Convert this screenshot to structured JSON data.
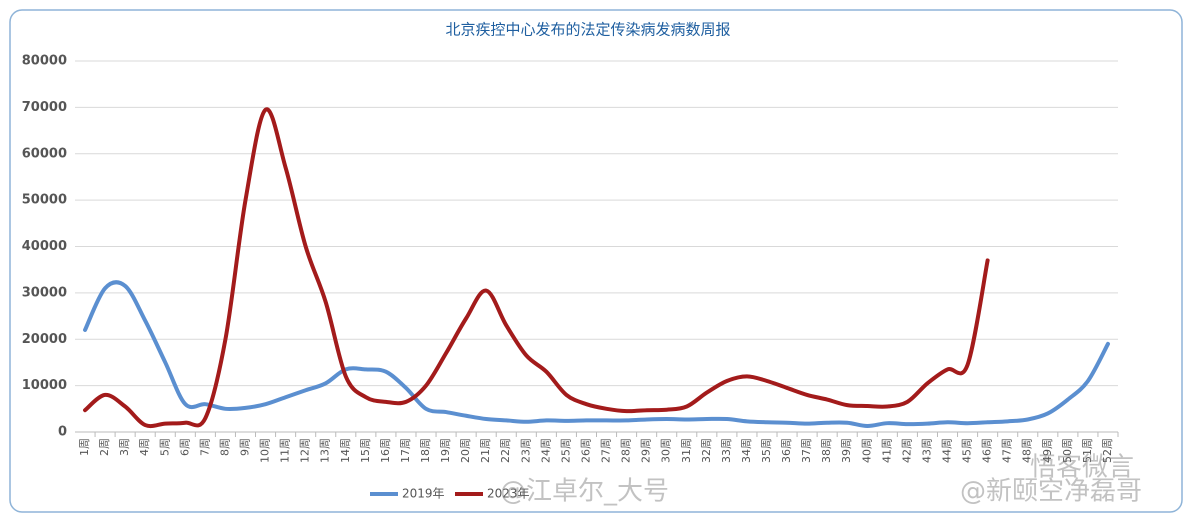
{
  "chart_data": {
    "type": "line",
    "title": "北京疾控中心发布的法定传染病发病数周报",
    "categories": [
      "1周",
      "2周",
      "3周",
      "4周",
      "5周",
      "6周",
      "7周",
      "8周",
      "9周",
      "10周",
      "11周",
      "12周",
      "13周",
      "14周",
      "15周",
      "16周",
      "17周",
      "18周",
      "19周",
      "20周",
      "21周",
      "22周",
      "23周",
      "24周",
      "25周",
      "26周",
      "27周",
      "28周",
      "29周",
      "30周",
      "31周",
      "32周",
      "33周",
      "34周",
      "35周",
      "36周",
      "37周",
      "38周",
      "39周",
      "40周",
      "41周",
      "42周",
      "43周",
      "44周",
      "45周",
      "46周",
      "47周",
      "48周",
      "49周",
      "50周",
      "51周",
      "52周"
    ],
    "series": [
      {
        "name": "2019年",
        "color": "#5b8fd0",
        "values": [
          22000,
          31000,
          31500,
          24000,
          15000,
          6000,
          6000,
          5000,
          5200,
          6000,
          7500,
          9000,
          10500,
          13500,
          13500,
          13000,
          9500,
          5000,
          4300,
          3500,
          2800,
          2500,
          2200,
          2500,
          2400,
          2500,
          2500,
          2500,
          2700,
          2800,
          2700,
          2800,
          2800,
          2300,
          2100,
          2000,
          1800,
          2000,
          2000,
          1300,
          1900,
          1700,
          1800,
          2100,
          1900,
          2100,
          2300,
          2700,
          4000,
          7000,
          11000,
          19000
        ]
      },
      {
        "name": "2023年",
        "color": "#a31b1b",
        "values": [
          4700,
          8000,
          5500,
          1500,
          1800,
          2000,
          3000,
          20000,
          50000,
          69500,
          57000,
          40000,
          28000,
          12000,
          7500,
          6500,
          6500,
          10000,
          17000,
          24500,
          30500,
          23000,
          16500,
          13000,
          8000,
          6000,
          5000,
          4500,
          4700,
          4800,
          5500,
          8500,
          11000,
          12000,
          11000,
          9500,
          8000,
          7000,
          5800,
          5600,
          5500,
          6500,
          10500,
          13500,
          14500,
          37000,
          null,
          null,
          null,
          null,
          null,
          null
        ]
      }
    ],
    "ylim": [
      0,
      80000
    ],
    "yticks": [
      0,
      10000,
      20000,
      30000,
      40000,
      50000,
      60000,
      70000,
      80000
    ],
    "grid": true,
    "legend": "bottom",
    "annotations": [
      "@江卓尔_大号",
      "@新颐空净磊哥",
      "悟客微言"
    ]
  }
}
